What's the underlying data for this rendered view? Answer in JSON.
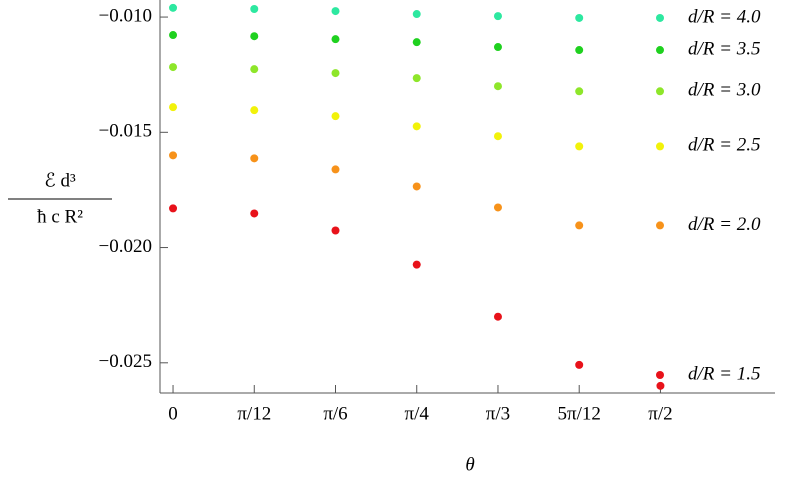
{
  "chart_data": {
    "type": "scatter",
    "xlabel": "θ",
    "ylabel": [
      "ℰ d³",
      "ħ c R²"
    ],
    "x": [
      0,
      0.2618,
      0.5236,
      0.7854,
      1.0472,
      1.309,
      1.5708
    ],
    "xlim": [
      -0.042,
      1.94
    ],
    "xticks": [
      {
        "value": 0,
        "label": "0"
      },
      {
        "value": 0.2618,
        "label": "π/12"
      },
      {
        "value": 0.5236,
        "label": "π/6"
      },
      {
        "value": 0.7854,
        "label": "π/4"
      },
      {
        "value": 1.0472,
        "label": "π/3"
      },
      {
        "value": 1.309,
        "label": "5π/12"
      },
      {
        "value": 1.5708,
        "label": "π/2"
      }
    ],
    "ylim": [
      -0.02631,
      -0.00926
    ],
    "yticks": [
      {
        "value": -0.01,
        "label": "−0.010"
      },
      {
        "value": -0.015,
        "label": "−0.015"
      },
      {
        "value": -0.02,
        "label": "−0.020"
      },
      {
        "value": -0.025,
        "label": "−0.025"
      }
    ],
    "legend": "right",
    "series": [
      {
        "name": "d/R = 4.0",
        "color": "#2de8a0",
        "values": [
          -0.0096,
          -0.00965,
          -0.00974,
          -0.00987,
          -0.00996,
          -0.01004,
          null
        ]
      },
      {
        "name": "d/R = 3.5",
        "color": "#1fd11f",
        "values": [
          -0.01078,
          -0.01083,
          -0.01096,
          -0.01109,
          -0.0113,
          -0.01143,
          null
        ]
      },
      {
        "name": "d/R = 3.0",
        "color": "#8ee62a",
        "values": [
          -0.01217,
          -0.01226,
          -0.01243,
          -0.01265,
          -0.013,
          -0.01322,
          null
        ]
      },
      {
        "name": "d/R = 2.5",
        "color": "#f2f20a",
        "values": [
          -0.01391,
          -0.01404,
          -0.0143,
          -0.01474,
          -0.01517,
          -0.01561,
          null
        ]
      },
      {
        "name": "d/R = 2.0",
        "color": "#f7921a",
        "values": [
          -0.016,
          -0.01613,
          -0.01661,
          -0.01735,
          -0.01826,
          -0.01904,
          null
        ]
      },
      {
        "name": "d/R = 1.5",
        "color": "#e8121a",
        "values": [
          -0.0183,
          -0.01852,
          -0.01926,
          -0.02074,
          -0.023,
          -0.02509,
          -0.026
        ]
      }
    ]
  }
}
